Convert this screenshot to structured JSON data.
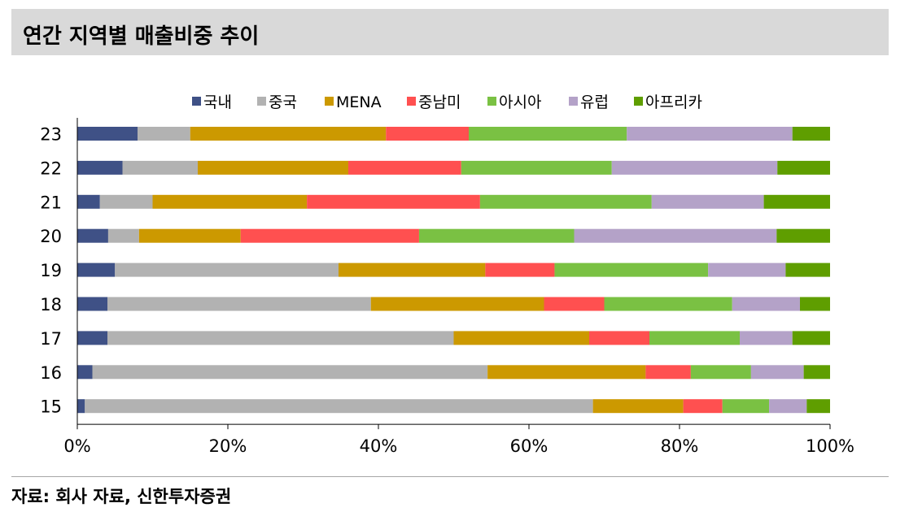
{
  "header": {
    "title": "연간 지역별 매출비중 추이"
  },
  "footer": {
    "source": "자료: 회사 자료, 신한투자증권"
  },
  "chart_data": {
    "type": "bar",
    "orientation": "horizontal",
    "stacked": true,
    "title": "",
    "xlabel": "",
    "ylabel": "",
    "xlim": [
      0,
      100
    ],
    "x_tick_labels": [
      "0%",
      "20%",
      "40%",
      "60%",
      "80%",
      "100%"
    ],
    "x_ticks": [
      0,
      20,
      40,
      60,
      80,
      100
    ],
    "legend_position": "top-center",
    "grid": false,
    "categories": [
      "23",
      "22",
      "21",
      "20",
      "19",
      "18",
      "17",
      "16",
      "15"
    ],
    "series": [
      {
        "name": "국내",
        "color": "#3f5186",
        "values": [
          8,
          6,
          3,
          4.1,
          5,
          4,
          4,
          2,
          1
        ]
      },
      {
        "name": "중국",
        "color": "#b2b2b2",
        "values": [
          7,
          10,
          7,
          4.1,
          29.7,
          35,
          46,
          52.5,
          67.5
        ]
      },
      {
        "name": "MENA",
        "color": "#cc9900",
        "values": [
          26,
          20,
          20.5,
          13.5,
          19.5,
          23,
          18,
          21,
          12
        ]
      },
      {
        "name": "중남미",
        "color": "#ff5050",
        "values": [
          11,
          15,
          23,
          23.7,
          9.2,
          8,
          8,
          6,
          5.2
        ]
      },
      {
        "name": "아시아",
        "color": "#7ac143",
        "values": [
          21,
          20,
          22.8,
          20.6,
          20.4,
          17,
          12,
          8,
          6.2
        ]
      },
      {
        "name": "유럽",
        "color": "#b4a2c8",
        "values": [
          22,
          22,
          14.9,
          26.9,
          10.3,
          9,
          7,
          7,
          5
        ]
      },
      {
        "name": "아프리카",
        "color": "#5f9e00",
        "values": [
          5,
          7,
          8.8,
          7.1,
          5.9,
          4,
          5,
          3.5,
          3.1
        ]
      }
    ]
  }
}
